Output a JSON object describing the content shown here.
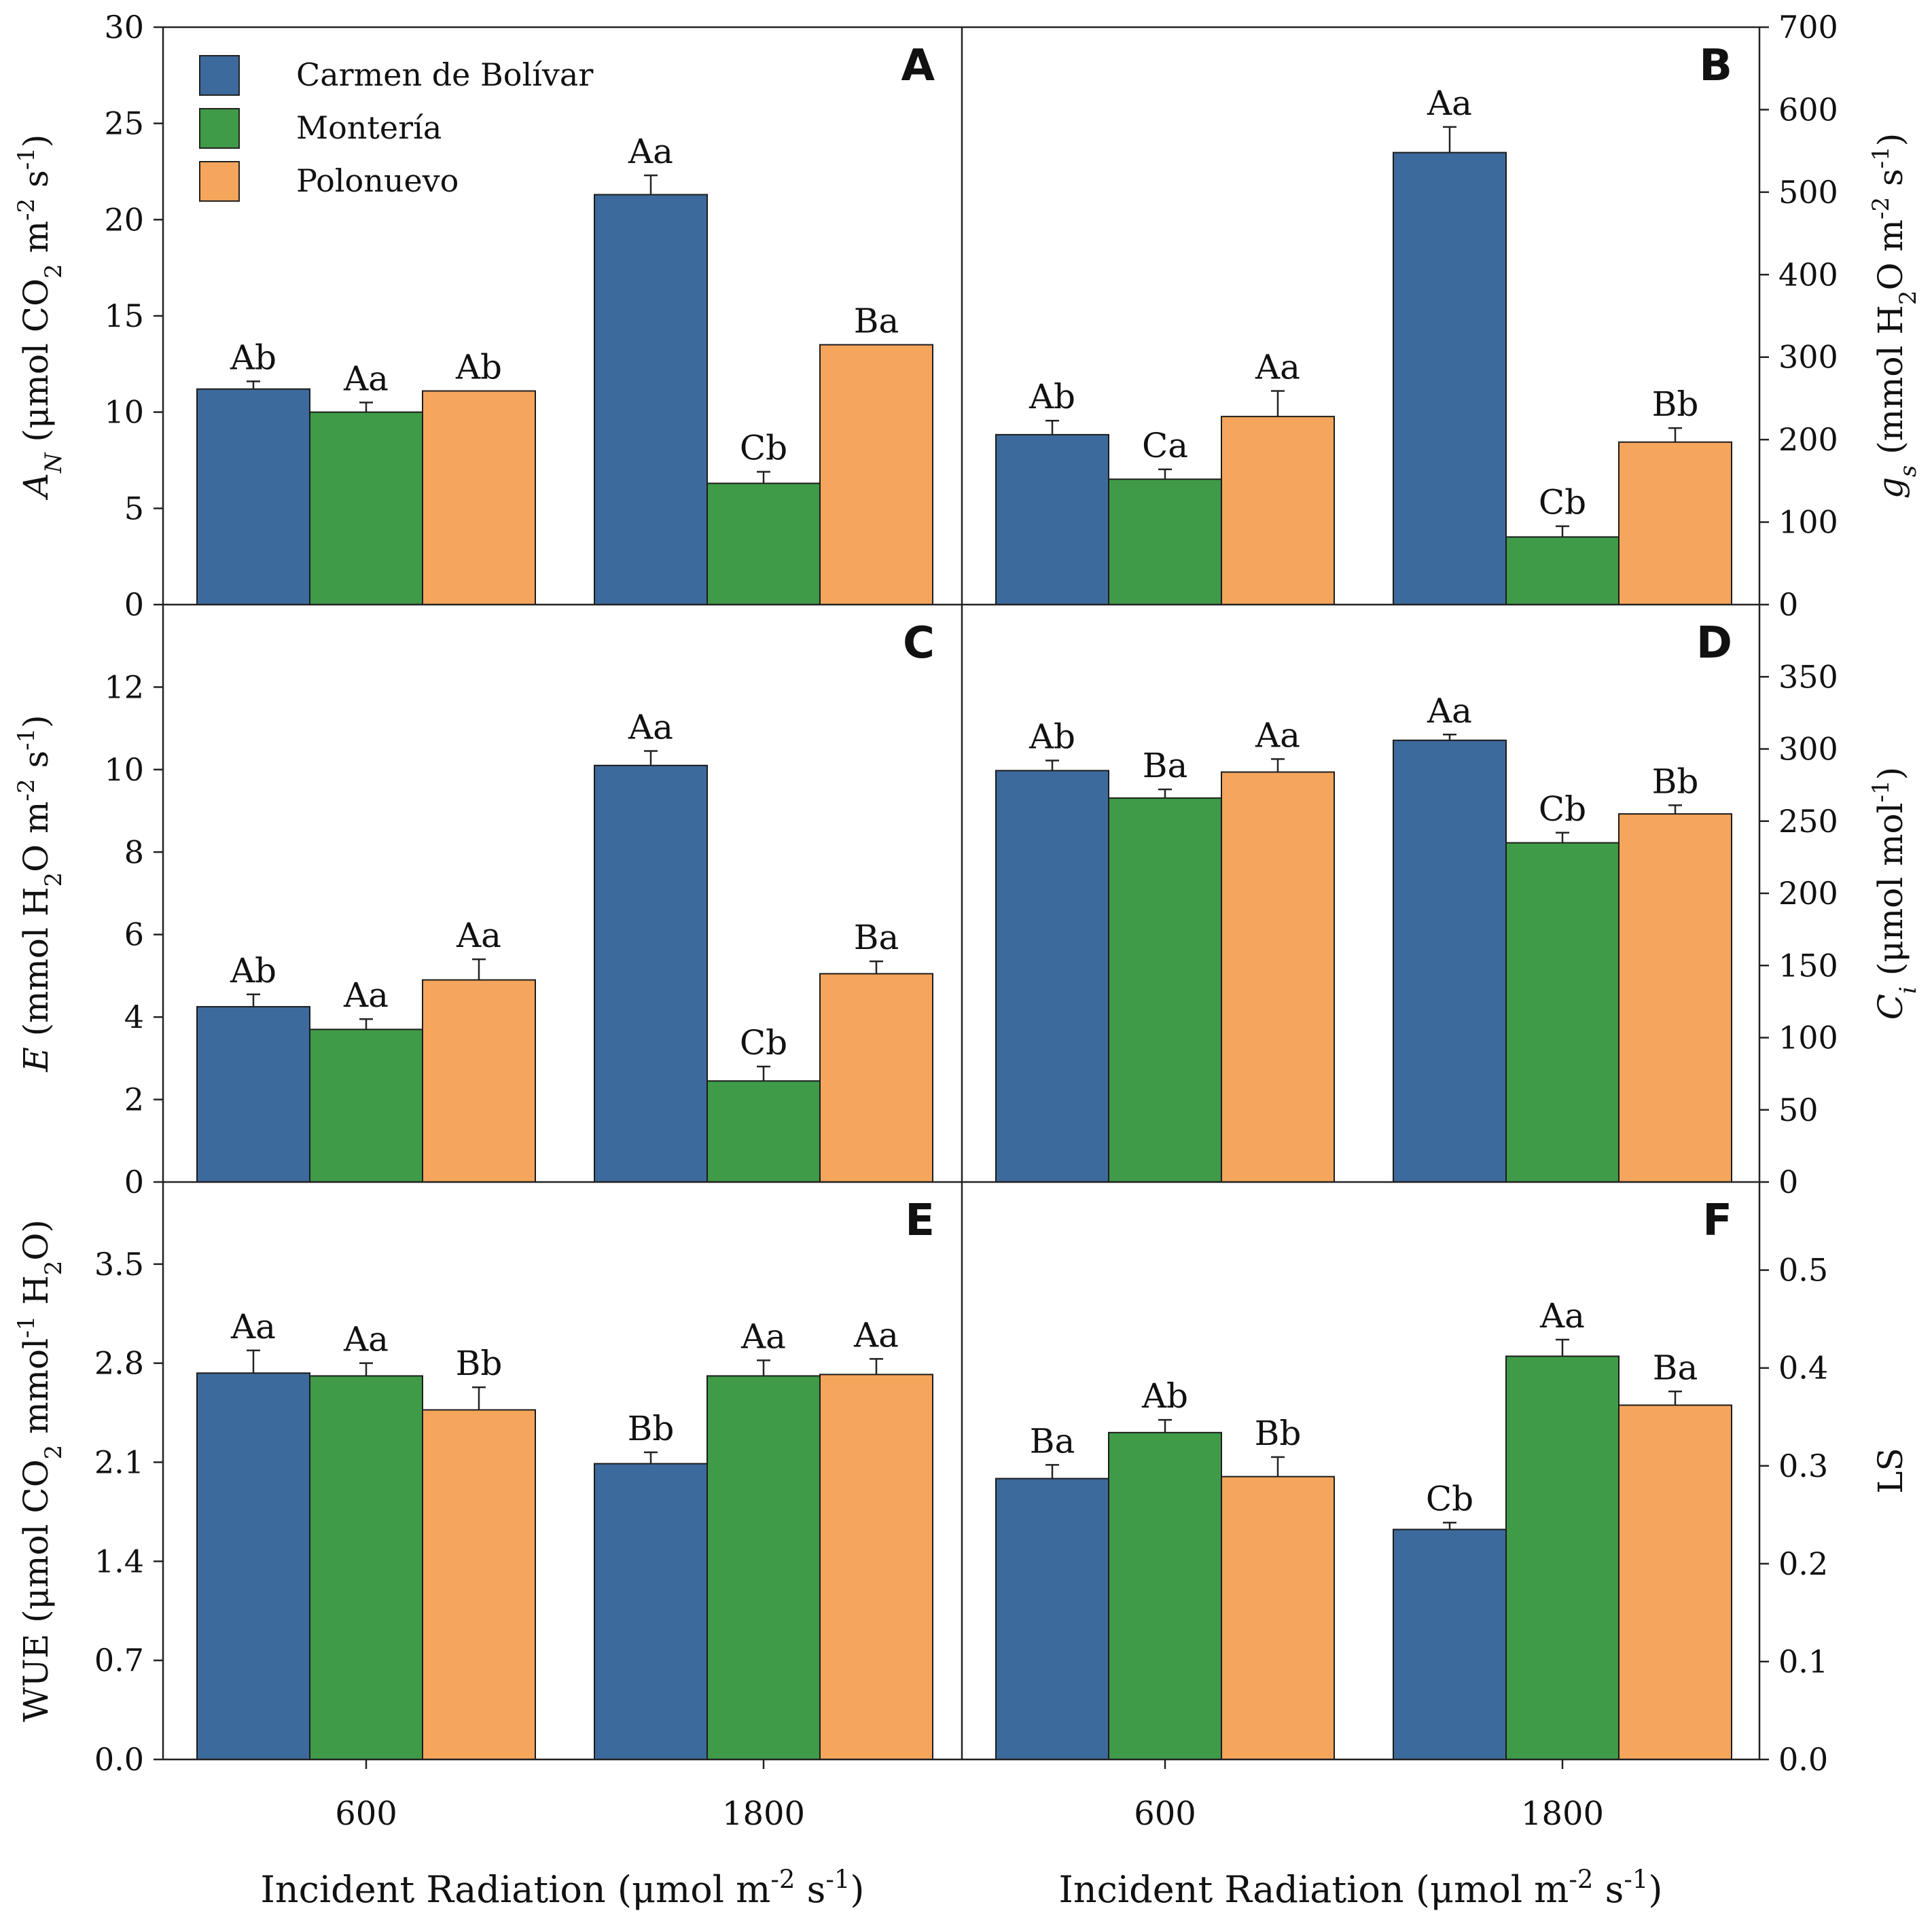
{
  "legend": {
    "items": [
      {
        "name": "Carmen de Bolívar",
        "color": "#3d6a9c"
      },
      {
        "name": "Montería",
        "color": "#3f9b47"
      },
      {
        "name": "Polonuevo",
        "color": "#f5a55c"
      }
    ]
  },
  "x_axis": {
    "tick_labels": [
      "600",
      "1800"
    ],
    "label_main": "Incident Radiation (μmol m",
    "label_exp1": "-2",
    "label_mid": " s",
    "label_exp2": "-1",
    "label_end": ")"
  },
  "chart_data": [
    {
      "panel": "A",
      "type": "bar",
      "categories": [
        "600",
        "1800"
      ],
      "series": [
        {
          "name": "Carmen de Bolívar",
          "values": [
            11.2,
            21.3
          ],
          "errors": [
            0.4,
            1.0
          ],
          "letters": [
            "Ab",
            "Aa"
          ]
        },
        {
          "name": "Montería",
          "values": [
            10.0,
            6.3
          ],
          "errors": [
            0.5,
            0.6
          ],
          "letters": [
            "Aa",
            "Cb"
          ]
        },
        {
          "name": "Polonuevo",
          "values": [
            11.1,
            13.5
          ],
          "errors": [
            0.0,
            0.0
          ],
          "letters": [
            "Ab",
            "Ba"
          ]
        }
      ],
      "ylim": [
        0,
        30
      ],
      "yticks": [
        0,
        5,
        10,
        15,
        20,
        25,
        30
      ],
      "ytick_labels": [
        "0",
        "5",
        "10",
        "15",
        "20",
        "25",
        "30"
      ],
      "ylabel_parts": [
        {
          "t": "A",
          "i": true
        },
        {
          "t": "N",
          "sub": true,
          "i": true
        },
        {
          "t": " (μmol CO"
        },
        {
          "t": "2",
          "sub": true
        },
        {
          "t": " m"
        },
        {
          "t": "-2",
          "sup": true
        },
        {
          "t": " s"
        },
        {
          "t": "-1",
          "sup": true
        },
        {
          "t": ")"
        }
      ]
    },
    {
      "panel": "B",
      "type": "bar",
      "categories": [
        "600",
        "1800"
      ],
      "series": [
        {
          "name": "Carmen de Bolívar",
          "values": [
            206,
            548
          ],
          "errors": [
            17,
            31
          ],
          "letters": [
            "Ab",
            "Aa"
          ]
        },
        {
          "name": "Montería",
          "values": [
            152,
            82
          ],
          "errors": [
            12,
            13
          ],
          "letters": [
            "Ca",
            "Cb"
          ]
        },
        {
          "name": "Polonuevo",
          "values": [
            228,
            197
          ],
          "errors": [
            31,
            17
          ],
          "letters": [
            "Aa",
            "Bb"
          ]
        }
      ],
      "ylim": [
        0,
        700
      ],
      "yticks": [
        0,
        100,
        200,
        300,
        400,
        500,
        600,
        700
      ],
      "ytick_labels": [
        "0",
        "100",
        "200",
        "300",
        "400",
        "500",
        "600",
        "700"
      ],
      "ylabel_parts": [
        {
          "t": "g",
          "i": true
        },
        {
          "t": "s",
          "sub": true,
          "i": true
        },
        {
          "t": " (mmol H"
        },
        {
          "t": "2",
          "sub": true
        },
        {
          "t": "O m"
        },
        {
          "t": "-2",
          "sup": true
        },
        {
          "t": " s"
        },
        {
          "t": "-1",
          "sup": true
        },
        {
          "t": ")"
        }
      ]
    },
    {
      "panel": "C",
      "type": "bar",
      "categories": [
        "600",
        "1800"
      ],
      "series": [
        {
          "name": "Carmen de Bolívar",
          "values": [
            4.25,
            10.1
          ],
          "errors": [
            0.3,
            0.35
          ],
          "letters": [
            "Ab",
            "Aa"
          ]
        },
        {
          "name": "Montería",
          "values": [
            3.7,
            2.45
          ],
          "errors": [
            0.25,
            0.35
          ],
          "letters": [
            "Aa",
            "Cb"
          ]
        },
        {
          "name": "Polonuevo",
          "values": [
            4.9,
            5.05
          ],
          "errors": [
            0.5,
            0.3
          ],
          "letters": [
            "Aa",
            "Ba"
          ]
        }
      ],
      "ylim": [
        0,
        14
      ],
      "yticks": [
        0,
        2,
        4,
        6,
        8,
        10,
        12
      ],
      "ytick_labels": [
        "0",
        "2",
        "4",
        "6",
        "8",
        "10",
        "12"
      ],
      "ylabel_parts": [
        {
          "t": "E",
          "i": true
        },
        {
          "t": " (mmol H"
        },
        {
          "t": "2",
          "sub": true
        },
        {
          "t": "O m"
        },
        {
          "t": "-2",
          "sup": true
        },
        {
          "t": " s"
        },
        {
          "t": "-1",
          "sup": true
        },
        {
          "t": ")"
        }
      ]
    },
    {
      "panel": "D",
      "type": "bar",
      "categories": [
        "600",
        "1800"
      ],
      "series": [
        {
          "name": "Carmen de Bolívar",
          "values": [
            285,
            306
          ],
          "errors": [
            7,
            4
          ],
          "letters": [
            "Ab",
            "Aa"
          ]
        },
        {
          "name": "Montería",
          "values": [
            266,
            235
          ],
          "errors": [
            6,
            7
          ],
          "letters": [
            "Ba",
            "Cb"
          ]
        },
        {
          "name": "Polonuevo",
          "values": [
            284,
            255
          ],
          "errors": [
            9,
            6
          ],
          "letters": [
            "Aa",
            "Bb"
          ]
        }
      ],
      "ylim": [
        0,
        400
      ],
      "yticks": [
        0,
        50,
        100,
        150,
        200,
        250,
        300,
        350
      ],
      "ytick_labels": [
        "0",
        "50",
        "100",
        "150",
        "200",
        "250",
        "300",
        "350"
      ],
      "ylabel_parts": [
        {
          "t": "C",
          "i": true
        },
        {
          "t": "i",
          "sub": true,
          "i": true
        },
        {
          "t": " (μmol mol"
        },
        {
          "t": "-1",
          "sup": true
        },
        {
          "t": ")"
        }
      ]
    },
    {
      "panel": "E",
      "type": "bar",
      "categories": [
        "600",
        "1800"
      ],
      "series": [
        {
          "name": "Carmen de Bolívar",
          "values": [
            2.73,
            2.09
          ],
          "errors": [
            0.16,
            0.08
          ],
          "letters": [
            "Aa",
            "Bb"
          ]
        },
        {
          "name": "Montería",
          "values": [
            2.71,
            2.71
          ],
          "errors": [
            0.09,
            0.11
          ],
          "letters": [
            "Aa",
            "Aa"
          ]
        },
        {
          "name": "Polonuevo",
          "values": [
            2.47,
            2.72
          ],
          "errors": [
            0.16,
            0.11
          ],
          "letters": [
            "Bb",
            "Aa"
          ]
        }
      ],
      "ylim": [
        0,
        4.08
      ],
      "yticks": [
        0.0,
        0.7,
        1.4,
        2.1,
        2.8,
        3.5
      ],
      "ytick_labels": [
        "0.0",
        "0.7",
        "1.4",
        "2.1",
        "2.8",
        "3.5"
      ],
      "ylabel_parts": [
        {
          "t": "WUE (μmol CO"
        },
        {
          "t": "2",
          "sub": true
        },
        {
          "t": " mmol"
        },
        {
          "t": "-1",
          "sup": true
        },
        {
          "t": " H"
        },
        {
          "t": "2",
          "sub": true
        },
        {
          "t": "O)"
        }
      ]
    },
    {
      "panel": "F",
      "type": "bar",
      "categories": [
        "600",
        "1800"
      ],
      "series": [
        {
          "name": "Carmen de Bolívar",
          "values": [
            0.287,
            0.235
          ],
          "errors": [
            0.014,
            0.007
          ],
          "letters": [
            "Ba",
            "Cb"
          ]
        },
        {
          "name": "Montería",
          "values": [
            0.334,
            0.412
          ],
          "errors": [
            0.013,
            0.017
          ],
          "letters": [
            "Ab",
            "Aa"
          ]
        },
        {
          "name": "Polonuevo",
          "values": [
            0.289,
            0.362
          ],
          "errors": [
            0.02,
            0.014
          ],
          "letters": [
            "Bb",
            "Ba"
          ]
        }
      ],
      "ylim": [
        0,
        0.59
      ],
      "yticks": [
        0.0,
        0.1,
        0.2,
        0.3,
        0.4,
        0.5
      ],
      "ytick_labels": [
        "0.0",
        "0.1",
        "0.2",
        "0.3",
        "0.4",
        "0.5"
      ],
      "ylabel_parts": [
        {
          "t": "LS"
        }
      ]
    }
  ]
}
